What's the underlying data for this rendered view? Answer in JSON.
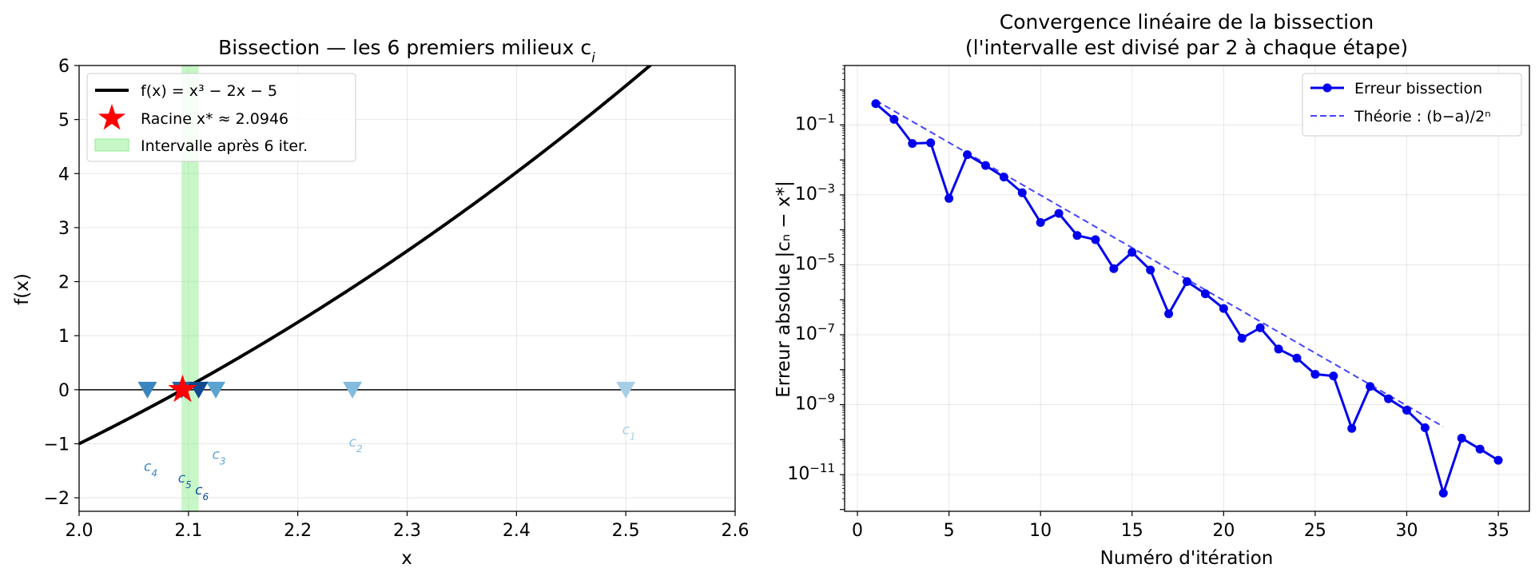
{
  "chart_data": [
    {
      "type": "line",
      "title": "Bissection — les 6 premiers milieux c",
      "title_sub": "i",
      "xlabel": "x",
      "ylabel": "f(x)",
      "xlim": [
        2.0,
        2.6
      ],
      "ylim": [
        -2.25,
        6.0
      ],
      "xticks": [
        "2.0",
        "2.1",
        "2.2",
        "2.3",
        "2.4",
        "2.5",
        "2.6"
      ],
      "yticks": [
        "−2",
        "−1",
        "0",
        "1",
        "2",
        "3",
        "4",
        "5",
        "6"
      ],
      "grid": true,
      "legend_position": "top-left",
      "function": {
        "name": "f(x) = x³ − 2x − 5",
        "color": "#000000"
      },
      "root": {
        "x": 2.0946,
        "label": "Racine x* ≈ 2.0946",
        "color": "#ff0000"
      },
      "interval": {
        "from": 2.09375,
        "to": 2.109375,
        "label": "Intervalle après 6 iter.",
        "color": "#90ee90"
      },
      "midpoints": [
        {
          "label": "c",
          "sub": "1",
          "x": 2.5,
          "label_y": -0.82,
          "color": "#a6cfe6"
        },
        {
          "label": "c",
          "sub": "2",
          "x": 2.25,
          "label_y": -1.05,
          "color": "#84bcdf"
        },
        {
          "label": "c",
          "sub": "3",
          "x": 2.125,
          "label_y": -1.28,
          "color": "#5ba3d0"
        },
        {
          "label": "c",
          "sub": "4",
          "x": 2.0625,
          "label_y": -1.5,
          "color": "#3a85bf"
        },
        {
          "label": "c",
          "sub": "5",
          "x": 2.09375,
          "label_y": -1.72,
          "color": "#1f65a8"
        },
        {
          "label": "c",
          "sub": "6",
          "x": 2.109375,
          "label_y": -1.94,
          "color": "#0d4a90"
        }
      ]
    },
    {
      "type": "line",
      "title_line1": "Convergence linéaire de la bissection",
      "title_line2": "(l'intervalle est divisé par 2 à chaque étape)",
      "xlabel": "Numéro d'itération",
      "ylabel": "Erreur absolue |cₙ − x*|",
      "yscale": "log",
      "xlim": [
        -0.7,
        36.7
      ],
      "ylim_log10": [
        -12.05,
        0.7
      ],
      "xticks": [
        "0",
        "5",
        "10",
        "15",
        "20",
        "25",
        "30",
        "35"
      ],
      "yticks": [
        {
          "base": "10",
          "exp": "−1",
          "log10": -1
        },
        {
          "base": "10",
          "exp": "−3",
          "log10": -3
        },
        {
          "base": "10",
          "exp": "−5",
          "log10": -5
        },
        {
          "base": "10",
          "exp": "−7",
          "log10": -7
        },
        {
          "base": "10",
          "exp": "−9",
          "log10": -9
        },
        {
          "base": "10",
          "exp": "−11",
          "log10": -11
        }
      ],
      "grid": true,
      "legend_position": "top-right",
      "series": [
        {
          "name": "Erreur bissection",
          "color": "#0000ee",
          "x": [
            1,
            2,
            3,
            4,
            5,
            6,
            7,
            8,
            9,
            10,
            11,
            12,
            13,
            14,
            15,
            16,
            17,
            18,
            19,
            20,
            21,
            22,
            23,
            24,
            25,
            26,
            27,
            28,
            29,
            30,
            31,
            32,
            33,
            34,
            35
          ],
          "log10_y": [
            -0.39,
            -0.84,
            -1.53,
            -1.51,
            -3.1,
            -1.85,
            -2.16,
            -2.49,
            -2.94,
            -3.79,
            -3.53,
            -4.16,
            -4.28,
            -5.11,
            -4.64,
            -5.15,
            -6.4,
            -5.48,
            -5.83,
            -6.25,
            -7.1,
            -6.8,
            -7.41,
            -7.67,
            -8.13,
            -8.18,
            -9.68,
            -8.48,
            -8.83,
            -9.16,
            -9.66,
            -11.53,
            -9.96,
            -10.27,
            -10.59
          ]
        },
        {
          "name": "Théorie : (b−a)/2ⁿ",
          "color": "#4444ff",
          "x": [
            1,
            32
          ],
          "log10_y": [
            -0.3,
            -9.63
          ]
        }
      ]
    }
  ]
}
